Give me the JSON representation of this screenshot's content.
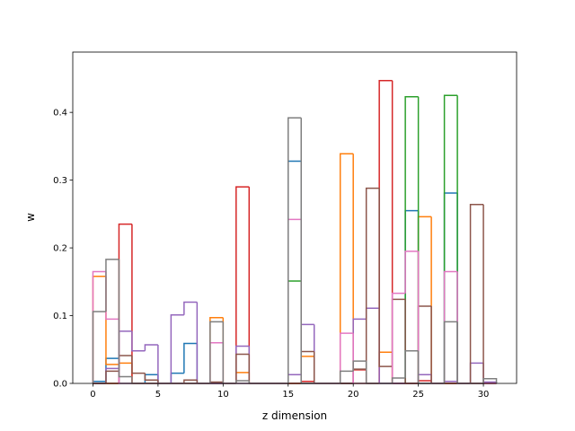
{
  "chart_data": {
    "type": "histogram",
    "histtype": "step",
    "xlabel": "z dimension",
    "ylabel": "w",
    "bins": [
      0,
      1,
      2,
      3,
      4,
      5,
      6,
      7,
      8,
      9,
      10,
      11,
      12,
      13,
      14,
      15,
      16,
      17,
      18,
      19,
      20,
      21,
      22,
      23,
      24,
      25,
      26,
      27,
      28,
      29,
      30,
      31
    ],
    "xlim": [
      -1.55,
      32.55
    ],
    "ylim": [
      0,
      0.489
    ],
    "xticks": [
      0,
      5,
      10,
      15,
      20,
      25,
      30
    ],
    "yticks": [
      {
        "value": 0,
        "label": "0.0"
      },
      0.1,
      0.2,
      0.3,
      0.4
    ],
    "series": [
      {
        "color": "#1f77b4",
        "values": [
          0.003,
          0.037,
          0,
          0,
          0.013,
          0,
          0.015,
          0.059,
          0,
          0,
          0,
          0,
          0,
          0,
          0,
          0.328,
          0,
          0,
          0,
          0,
          0,
          0,
          0,
          0,
          0.255,
          0,
          0,
          0.281,
          0,
          0,
          0
        ]
      },
      {
        "color": "#ff7f0e",
        "values": [
          0.158,
          0.028,
          0.03,
          0,
          0,
          0,
          0,
          0,
          0,
          0.097,
          0,
          0.016,
          0,
          0,
          0,
          0,
          0.04,
          0,
          0,
          0.339,
          0,
          0,
          0.046,
          0,
          0,
          0.246,
          0,
          0,
          0,
          0,
          0
        ]
      },
      {
        "color": "#2ca02c",
        "values": [
          0,
          0,
          0,
          0,
          0,
          0,
          0,
          0,
          0,
          0,
          0,
          0,
          0,
          0,
          0,
          0.151,
          0,
          0,
          0,
          0,
          0,
          0,
          0,
          0,
          0.423,
          0,
          0,
          0.425,
          0,
          0,
          0
        ]
      },
      {
        "color": "#d62728",
        "values": [
          0,
          0,
          0.235,
          0,
          0,
          0,
          0,
          0,
          0,
          0,
          0,
          0.29,
          0,
          0,
          0,
          0,
          0.003,
          0,
          0,
          0,
          0.02,
          0,
          0.447,
          0,
          0,
          0.004,
          0,
          0,
          0,
          0,
          0
        ]
      },
      {
        "color": "#9467bd",
        "values": [
          0,
          0.022,
          0.077,
          0.048,
          0.057,
          0,
          0.101,
          0.12,
          0,
          0,
          0,
          0.055,
          0,
          0,
          0,
          0.013,
          0.087,
          0,
          0,
          0,
          0.095,
          0.111,
          0,
          0,
          0,
          0.013,
          0,
          0.003,
          0,
          0.03,
          0.002
        ]
      },
      {
        "color": "#8c564b",
        "values": [
          0,
          0.018,
          0.041,
          0.015,
          0.005,
          0,
          0,
          0.005,
          0,
          0.002,
          0,
          0.043,
          0,
          0,
          0,
          0,
          0.047,
          0,
          0,
          0,
          0.021,
          0.288,
          0.025,
          0.124,
          0,
          0.114,
          0,
          0,
          0,
          0.264,
          0
        ]
      },
      {
        "color": "#e377c2",
        "values": [
          0.165,
          0.095,
          0,
          0,
          0,
          0,
          0,
          0,
          0,
          0.06,
          0,
          0,
          0,
          0,
          0,
          0.242,
          0,
          0,
          0,
          0.074,
          0,
          0,
          0,
          0.133,
          0.195,
          0,
          0,
          0.165,
          0,
          0,
          0
        ]
      },
      {
        "color": "#7f7f7f",
        "values": [
          0.106,
          0.183,
          0.01,
          0,
          0,
          0,
          0,
          0,
          0,
          0.091,
          0,
          0.004,
          0,
          0,
          0,
          0.392,
          0,
          0,
          0,
          0.018,
          0.033,
          0,
          0,
          0.008,
          0.048,
          0,
          0,
          0.091,
          0,
          0,
          0.007
        ]
      }
    ]
  }
}
